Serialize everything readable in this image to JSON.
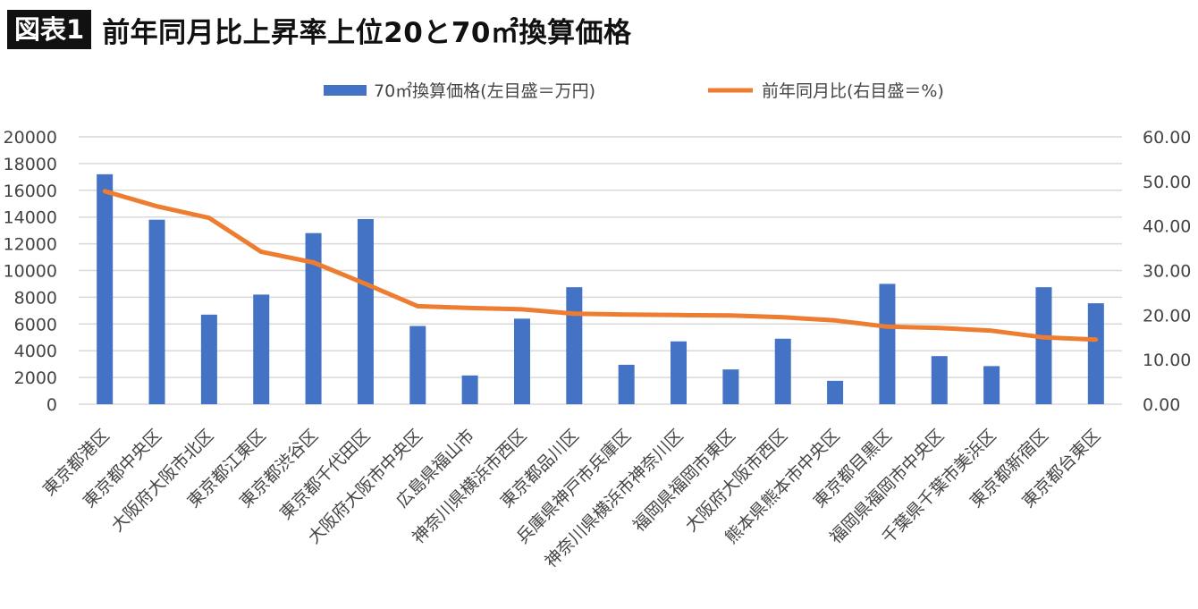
{
  "header": {
    "badge": "図表1",
    "title": "前年同月比上昇率上位20と70㎡換算価格"
  },
  "chart_data": {
    "type": "bar",
    "categories": [
      "東京都港区",
      "東京都中央区",
      "大阪府大阪市北区",
      "東京都江東区",
      "東京都渋谷区",
      "東京都千代田区",
      "大阪府大阪市中央区",
      "広島県福山市",
      "神奈川県横浜市西区",
      "東京都品川区",
      "兵庫県神戸市兵庫区",
      "神奈川県横浜市神奈川区",
      "福岡県福岡市東区",
      "大阪府大阪市西区",
      "熊本県熊本市中央区",
      "東京都目黒区",
      "福岡県福岡市中央区",
      "千葉県千葉市美浜区",
      "東京都新宿区",
      "東京都台東区"
    ],
    "series": [
      {
        "name": "70㎡換算価格(左目盛＝万円)",
        "type": "bar",
        "axis": "left",
        "color": "#4472c4",
        "values": [
          17200,
          13800,
          6700,
          8200,
          12800,
          13850,
          5850,
          2150,
          6400,
          8750,
          2950,
          4700,
          2600,
          4900,
          1750,
          9000,
          3600,
          2850,
          8750,
          7550
        ]
      },
      {
        "name": "前年同月比(右目盛＝%)",
        "type": "line",
        "axis": "right",
        "color": "#ed7d31",
        "values": [
          47.8,
          44.4,
          41.8,
          34.2,
          31.8,
          27.0,
          22.0,
          21.6,
          21.3,
          20.3,
          20.1,
          20.0,
          19.9,
          19.5,
          18.8,
          17.4,
          17.1,
          16.5,
          15.0,
          14.5
        ]
      }
    ],
    "y_left": {
      "ylim": [
        0,
        20000
      ],
      "ticks": [
        "0",
        "2000",
        "4000",
        "6000",
        "8000",
        "10000",
        "12000",
        "14000",
        "16000",
        "18000",
        "20000"
      ]
    },
    "y_right": {
      "ylim": [
        0,
        60
      ],
      "ticks": [
        "0.00",
        "10.00",
        "20.00",
        "30.00",
        "40.00",
        "50.00",
        "60.00"
      ]
    },
    "grid": true,
    "legend": "top"
  }
}
